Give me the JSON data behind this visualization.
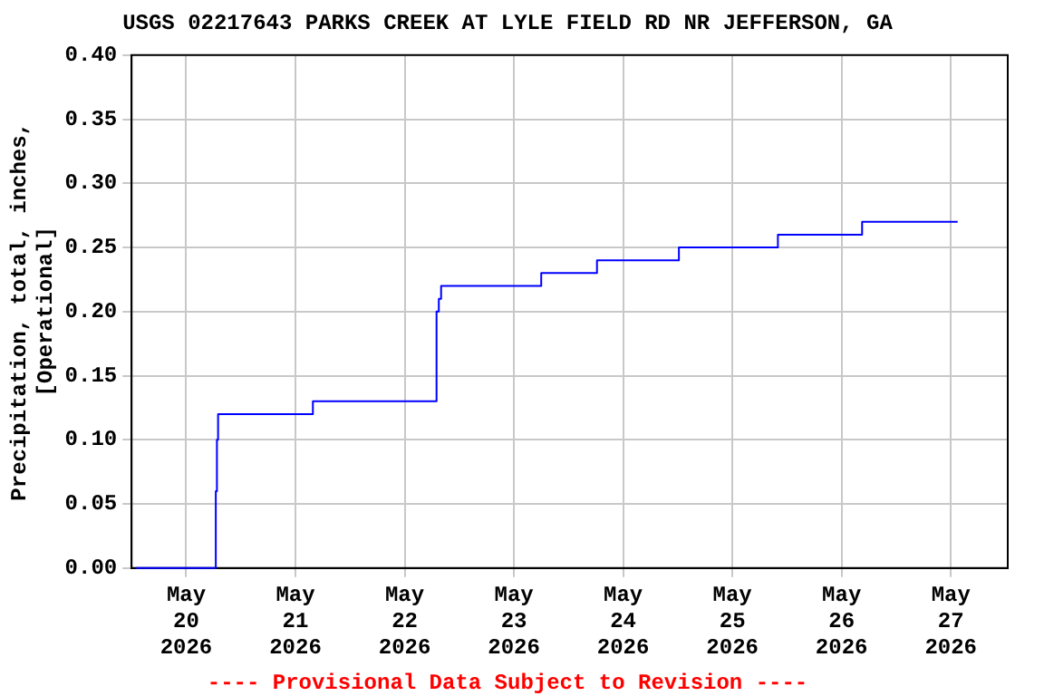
{
  "chart_data": {
    "type": "step",
    "title": "USGS 02217643 PARKS CREEK AT LYLE FIELD RD NR JEFFERSON, GA",
    "ylabel": "Precipitation, total, inches,\n[Operational]",
    "annotations": [
      "---- Provisional Data Subject to Revision ----"
    ],
    "x": [
      "2026-05-19T13:00",
      "2026-05-20T06:15",
      "2026-05-20T06:30",
      "2026-05-20T06:45",
      "2026-05-20T07:00",
      "2026-05-21T03:50",
      "2026-05-22T06:00",
      "2026-05-22T07:00",
      "2026-05-22T07:30",
      "2026-05-22T08:00",
      "2026-05-23T06:00",
      "2026-05-23T18:15",
      "2026-05-24T12:15",
      "2026-05-25T10:00",
      "2026-05-26T04:30",
      "2026-05-27T01:30"
    ],
    "series": [
      {
        "color": "#0000ff",
        "values": [
          0,
          0,
          0.06,
          0.1,
          0.12,
          0.13,
          0.13,
          0.2,
          0.21,
          0.22,
          0.23,
          0.24,
          0.25,
          0.26,
          0.27,
          0.27
        ]
      }
    ],
    "xlim": [
      "2026-05-19T12:00",
      "2026-05-27T12:30"
    ],
    "xticks": [
      {
        "value": "2026-05-20",
        "label": "May 20 2026"
      },
      {
        "value": "2026-05-21",
        "label": "May 21 2026"
      },
      {
        "value": "2026-05-22",
        "label": "May 22 2026"
      },
      {
        "value": "2026-05-23",
        "label": "May 23 2026"
      },
      {
        "value": "2026-05-24",
        "label": "May 24 2026"
      },
      {
        "value": "2026-05-25",
        "label": "May 25 2026"
      },
      {
        "value": "2026-05-26",
        "label": "May 26 2026"
      },
      {
        "value": "2026-05-27",
        "label": "May 27 2026"
      }
    ],
    "ylim": [
      0,
      0.4
    ],
    "yticks": [
      {
        "value": 0,
        "label": "0.00"
      },
      {
        "value": 0.05,
        "label": "0.05"
      },
      {
        "value": 0.1,
        "label": "0.10"
      },
      {
        "value": 0.15,
        "label": "0.15"
      },
      {
        "value": 0.2,
        "label": "0.20"
      },
      {
        "value": 0.25,
        "label": "0.25"
      },
      {
        "value": 0.3,
        "label": "0.30"
      },
      {
        "value": 0.35,
        "label": "0.35"
      },
      {
        "value": 0.4,
        "label": "0.40"
      }
    ],
    "grid": true,
    "legend": false
  }
}
